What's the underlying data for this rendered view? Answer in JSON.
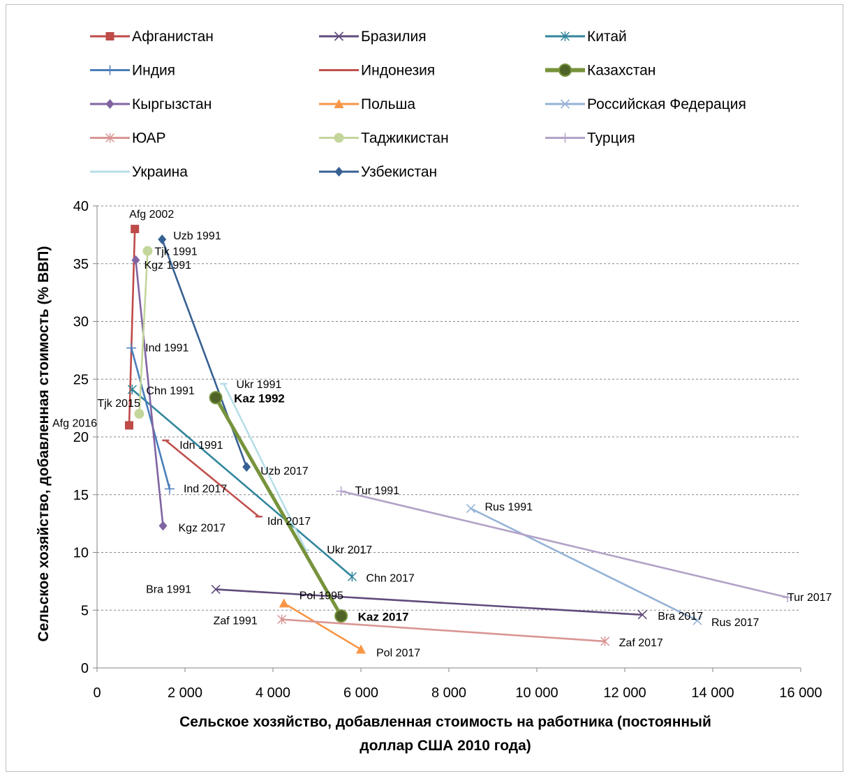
{
  "chart_data": {
    "type": "scatter",
    "title": "",
    "xlabel_lines": [
      "Сельское хозяйство, добавленная стоимость на работника (постоянный",
      "доллар США 2010 года)"
    ],
    "ylabel": "Сельское хозяйство, добавленная стоимость (% ВВП)",
    "xlim": [
      0,
      16000
    ],
    "ylim": [
      0,
      40
    ],
    "x_ticks": [
      0,
      2000,
      4000,
      6000,
      8000,
      10000,
      12000,
      14000,
      16000
    ],
    "x_tick_labels": [
      "0",
      "2 000",
      "4 000",
      "6 000",
      "8 000",
      "10 000",
      "12 000",
      "14 000",
      "16 000"
    ],
    "y_ticks": [
      0,
      5,
      10,
      15,
      20,
      25,
      30,
      35,
      40
    ],
    "y_tick_labels": [
      "0",
      "5",
      "10",
      "15",
      "20",
      "25",
      "30",
      "35",
      "40"
    ],
    "grid": "horizontal dashed",
    "legend_position": "top",
    "series": [
      {
        "name": "Афганистан",
        "color": "#be4b48",
        "marker": "square",
        "points": [
          [
            730,
            21.0
          ],
          [
            860,
            38.0
          ],
          [
            730,
            21.0
          ]
        ],
        "labels": [
          {
            "text": "Afg 2002",
            "i": 1
          },
          {
            "text": "Afg 2016",
            "i": 0
          }
        ]
      },
      {
        "name": "Бразилия",
        "color": "#604a7b",
        "marker": "x",
        "points": [
          [
            2700,
            6.8
          ],
          [
            12400,
            4.6
          ]
        ],
        "labels": [
          {
            "text": "Bra 1991",
            "i": 0
          },
          {
            "text": "Bra 2017",
            "i": 1
          }
        ]
      },
      {
        "name": "Китай",
        "color": "#31859c",
        "marker": "asterisk",
        "points": [
          [
            800,
            24.1
          ],
          [
            5800,
            7.9
          ]
        ],
        "labels": [
          {
            "text": "Chn 1991",
            "i": 0
          },
          {
            "text": "Chn 2017",
            "i": 1
          }
        ]
      },
      {
        "name": "Индия",
        "color": "#4a7ebb",
        "marker": "plus",
        "points": [
          [
            780,
            27.7
          ],
          [
            1650,
            15.5
          ]
        ],
        "labels": [
          {
            "text": "Ind 1991",
            "i": 0
          },
          {
            "text": "Ind 2017",
            "i": 1
          }
        ]
      },
      {
        "name": "Индонезия",
        "color": "#c0504d",
        "marker": "dash",
        "points": [
          [
            1560,
            19.7
          ],
          [
            3680,
            13.1
          ]
        ],
        "labels": [
          {
            "text": "Idn 1991",
            "i": 0
          },
          {
            "text": "Idn 2017",
            "i": 1
          }
        ]
      },
      {
        "name": "Казахстан",
        "color": "#77933c",
        "marker": "circle-big",
        "points": [
          [
            2700,
            23.4
          ],
          [
            5550,
            4.5
          ]
        ],
        "labels": [
          {
            "text": "Kaz 1992",
            "i": 0,
            "bold": true
          },
          {
            "text": "Kaz 2017",
            "i": 1,
            "bold": true
          }
        ]
      },
      {
        "name": "Кыргызстан",
        "color": "#8064a2",
        "marker": "diamond",
        "points": [
          [
            880,
            35.3
          ],
          [
            1500,
            12.3
          ]
        ],
        "labels": [
          {
            "text": "Kgz 1991",
            "i": 0
          },
          {
            "text": "Kgz 2017",
            "i": 1
          }
        ]
      },
      {
        "name": "Польша",
        "color": "#f79646",
        "marker": "triangle",
        "points": [
          [
            4250,
            5.6
          ],
          [
            6000,
            1.6
          ]
        ],
        "labels": [
          {
            "text": "Pol 1995",
            "i": 0
          },
          {
            "text": "Pol 2017",
            "i": 1
          }
        ]
      },
      {
        "name": "Российская Федерация",
        "color": "#95b3d7",
        "marker": "x",
        "points": [
          [
            8500,
            13.8
          ],
          [
            13650,
            4.1
          ]
        ],
        "labels": [
          {
            "text": "Rus 1991",
            "i": 0
          },
          {
            "text": "Rus 2017",
            "i": 1
          }
        ]
      },
      {
        "name": "ЮАР",
        "color": "#d99694",
        "marker": "asterisk",
        "points": [
          [
            4200,
            4.2
          ],
          [
            11550,
            2.3
          ]
        ],
        "labels": [
          {
            "text": "Zaf 1991",
            "i": 0
          },
          {
            "text": "Zaf 2017",
            "i": 1
          }
        ]
      },
      {
        "name": "Таджикистан",
        "color": "#c3d69b",
        "marker": "circle",
        "points": [
          [
            1150,
            36.1
          ],
          [
            960,
            22.0
          ]
        ],
        "labels": [
          {
            "text": "Tjk 1991",
            "i": 0
          },
          {
            "text": "Tjk 2015",
            "i": 1
          }
        ]
      },
      {
        "name": "Турция",
        "color": "#b3a2c7",
        "marker": "plus",
        "points": [
          [
            5550,
            15.3
          ],
          [
            15700,
            6.1
          ]
        ],
        "labels": [
          {
            "text": "Tur 1991",
            "i": 0
          },
          {
            "text": "Tur 2017",
            "i": 1
          }
        ]
      },
      {
        "name": "Украина",
        "color": "#b7dee8",
        "marker": "dash",
        "points": [
          [
            2880,
            24.6
          ],
          [
            4750,
            10.2
          ]
        ],
        "labels": [
          {
            "text": "Ukr 1991",
            "i": 0
          },
          {
            "text": "Ukr 2017",
            "i": 1
          }
        ]
      },
      {
        "name": "Узбекистан",
        "color": "#376092",
        "marker": "diamond",
        "points": [
          [
            1480,
            37.1
          ],
          [
            3400,
            17.4
          ]
        ],
        "labels": [
          {
            "text": "Uzb 1991",
            "i": 0
          },
          {
            "text": "Uzb 2017",
            "i": 1
          }
        ]
      }
    ]
  }
}
